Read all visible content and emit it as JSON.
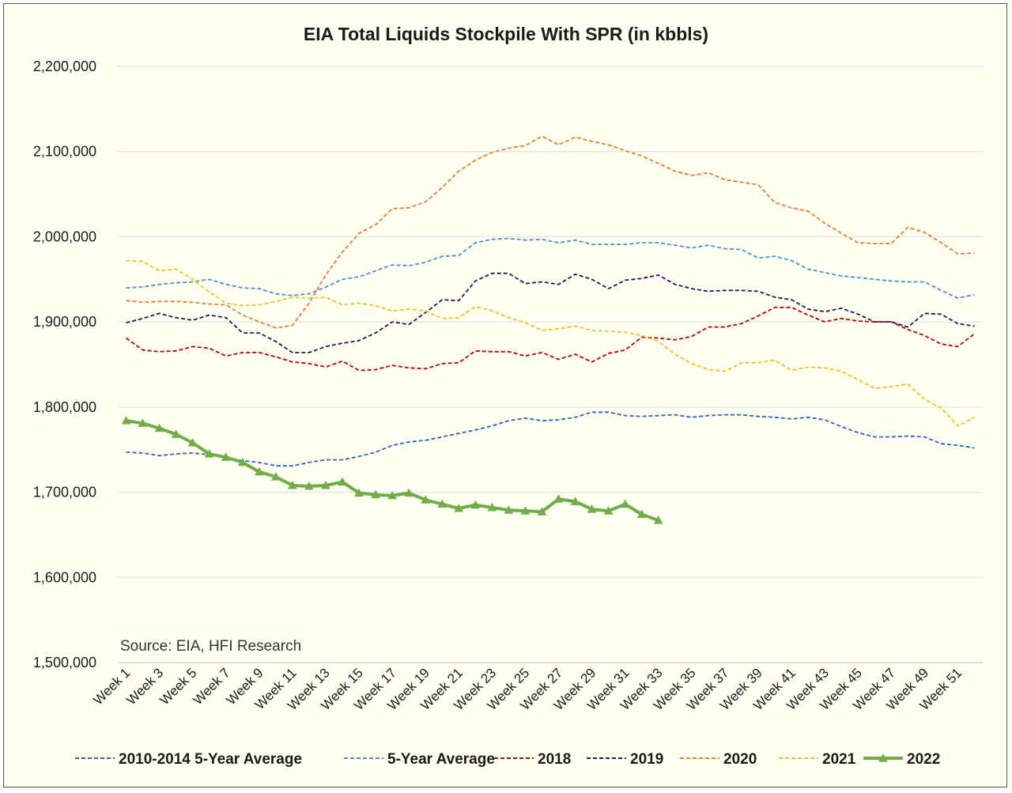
{
  "chart_data": {
    "type": "line",
    "title": "EIA Total Liquids Stockpile With SPR (in kbbls)",
    "annotation": "Source: EIA, HFI Research",
    "xlabel": "",
    "ylabel": "",
    "ylim": [
      1500000,
      2200000
    ],
    "yticks": [
      1500000,
      1600000,
      1700000,
      1800000,
      1900000,
      2000000,
      2100000,
      2200000
    ],
    "ytick_labels": [
      "1,500,000",
      "1,600,000",
      "1,700,000",
      "1,800,000",
      "1,900,000",
      "2,000,000",
      "2,100,000",
      "2,200,000"
    ],
    "x_tick_labels": [
      "Week 1",
      "Week 3",
      "Week 5",
      "Week 7",
      "Week 9",
      "Week 11",
      "Week 13",
      "Week 15",
      "Week 17",
      "Week 19",
      "Week 21",
      "Week 23",
      "Week 25",
      "Week 27",
      "Week 29",
      "Week 31",
      "Week 33",
      "Week 35",
      "Week 37",
      "Week 39",
      "Week 41",
      "Week 43",
      "Week 45",
      "Week 47",
      "Week 49",
      "Week 51"
    ],
    "num_weeks": 52,
    "grid": true,
    "legend_position": "bottom",
    "series": [
      {
        "name": "2010-2014 5-Year Average",
        "color": "#2f62c3",
        "dash": true,
        "marker": false,
        "values": [
          1747000,
          1746000,
          1743000,
          1745000,
          1746000,
          1744000,
          1741000,
          1737000,
          1735000,
          1731000,
          1731000,
          1735000,
          1738000,
          1738000,
          1742000,
          1747000,
          1755000,
          1759000,
          1761000,
          1765000,
          1769000,
          1773000,
          1778000,
          1784000,
          1787000,
          1784000,
          1785000,
          1788000,
          1794000,
          1794000,
          1790000,
          1789000,
          1790000,
          1791000,
          1788000,
          1790000,
          1791000,
          1791000,
          1789000,
          1788000,
          1786000,
          1788000,
          1785000,
          1777000,
          1770000,
          1765000,
          1765000,
          1766000,
          1765000,
          1757000,
          1755000,
          1752000
        ]
      },
      {
        "name": "5-Year Average",
        "color": "#4a8fd6",
        "dash": true,
        "marker": false,
        "values": [
          1940000,
          1941000,
          1944000,
          1946000,
          1947000,
          1950000,
          1944000,
          1940000,
          1939000,
          1933000,
          1931000,
          1933000,
          1941000,
          1950000,
          1953000,
          1960000,
          1967000,
          1966000,
          1970000,
          1977000,
          1978000,
          1993000,
          1997000,
          1998000,
          1996000,
          1997000,
          1993000,
          1996000,
          1991000,
          1991000,
          1991000,
          1993000,
          1993000,
          1990000,
          1987000,
          1990000,
          1986000,
          1985000,
          1975000,
          1977000,
          1972000,
          1962000,
          1958000,
          1954000,
          1952000,
          1950000,
          1948000,
          1947000,
          1947000,
          1937000,
          1928000,
          1932000
        ]
      },
      {
        "name": "2018",
        "color": "#c00000",
        "dash": true,
        "marker": false,
        "values": [
          1881000,
          1867000,
          1865000,
          1866000,
          1871000,
          1869000,
          1860000,
          1864000,
          1864000,
          1859000,
          1853000,
          1851000,
          1847000,
          1854000,
          1843000,
          1844000,
          1849000,
          1846000,
          1845000,
          1851000,
          1852000,
          1866000,
          1865000,
          1865000,
          1860000,
          1864000,
          1856000,
          1862000,
          1853000,
          1863000,
          1867000,
          1882000,
          1881000,
          1879000,
          1883000,
          1894000,
          1894000,
          1898000,
          1907000,
          1917000,
          1917000,
          1908000,
          1900000,
          1904000,
          1901000,
          1900000,
          1900000,
          1891000,
          1884000,
          1874000,
          1871000,
          1886000
        ]
      },
      {
        "name": "2019",
        "color": "#1a1a5e",
        "dash": true,
        "marker": false,
        "values": [
          1899000,
          1904000,
          1910000,
          1905000,
          1902000,
          1908000,
          1905000,
          1887000,
          1887000,
          1877000,
          1864000,
          1864000,
          1871000,
          1875000,
          1878000,
          1887000,
          1900000,
          1897000,
          1911000,
          1926000,
          1925000,
          1948000,
          1957000,
          1957000,
          1945000,
          1947000,
          1944000,
          1956000,
          1950000,
          1939000,
          1949000,
          1951000,
          1955000,
          1944000,
          1939000,
          1936000,
          1937000,
          1937000,
          1936000,
          1929000,
          1926000,
          1915000,
          1912000,
          1916000,
          1909000,
          1900000,
          1900000,
          1894000,
          1910000,
          1909000,
          1898000,
          1895000
        ]
      },
      {
        "name": "2020",
        "color": "#ee7a2b",
        "dash": true,
        "marker": false,
        "values": [
          1925000,
          1923000,
          1924000,
          1924000,
          1923000,
          1921000,
          1920000,
          1908000,
          1900000,
          1893000,
          1896000,
          1922000,
          1955000,
          1982000,
          2004000,
          2014000,
          2033000,
          2034000,
          2041000,
          2058000,
          2077000,
          2090000,
          2099000,
          2104000,
          2107000,
          2118000,
          2108000,
          2117000,
          2112000,
          2108000,
          2101000,
          2095000,
          2086000,
          2077000,
          2072000,
          2075000,
          2067000,
          2064000,
          2061000,
          2040000,
          2034000,
          2030000,
          2016000,
          2004000,
          1993000,
          1992000,
          1992000,
          2011000,
          2005000,
          1993000,
          1980000,
          1981000
        ]
      },
      {
        "name": "2021",
        "color": "#f2c01c",
        "dash": true,
        "marker": false,
        "values": [
          1972000,
          1971000,
          1960000,
          1962000,
          1950000,
          1935000,
          1922000,
          1919000,
          1920000,
          1924000,
          1929000,
          1928000,
          1929000,
          1920000,
          1922000,
          1919000,
          1913000,
          1915000,
          1913000,
          1904000,
          1905000,
          1918000,
          1913000,
          1905000,
          1899000,
          1890000,
          1892000,
          1895000,
          1890000,
          1889000,
          1888000,
          1884000,
          1877000,
          1862000,
          1851000,
          1844000,
          1842000,
          1852000,
          1852000,
          1855000,
          1843000,
          1847000,
          1846000,
          1842000,
          1832000,
          1822000,
          1824000,
          1827000,
          1809000,
          1799000,
          1778000,
          1788000
        ]
      },
      {
        "name": "2022",
        "color": "#70ad47",
        "dash": false,
        "marker": true,
        "values": [
          1784000,
          1781000,
          1775000,
          1768000,
          1758000,
          1745000,
          1741000,
          1735000,
          1724000,
          1718000,
          1708000,
          1707000,
          1708000,
          1712000,
          1699000,
          1697000,
          1696000,
          1699000,
          1691000,
          1686000,
          1681000,
          1685000,
          1682000,
          1679000,
          1678000,
          1677000,
          1692000,
          1689000,
          1680000,
          1678000,
          1686000,
          1674000,
          1667000
        ]
      }
    ]
  }
}
